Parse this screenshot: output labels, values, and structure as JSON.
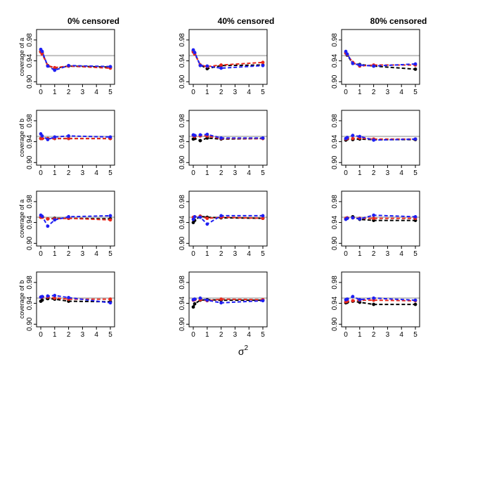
{
  "colors": {
    "reference_line": "#c0c0c0",
    "black": "#000000",
    "red": "#e8291c",
    "blue": "#1f1ff2"
  },
  "chart_data": {
    "type": "line",
    "layout": "4 rows x 3 columns small multiples",
    "x_label": "σ",
    "x_label_superscript": "2",
    "column_titles": [
      "0% censored",
      "40% censored",
      "80% censored"
    ],
    "row_ylabels": [
      "coverage of a",
      "coverage of b",
      "coverage of a",
      "coverage of b"
    ],
    "x_ticks": [
      "0",
      "1",
      "2",
      "3",
      "4",
      "5"
    ],
    "y_ticks": [
      "0.90",
      "0.94",
      "0.98"
    ],
    "xlim": [
      0,
      5
    ],
    "ylim": [
      0.895,
      1.0
    ],
    "reference_value": 0.95,
    "x": [
      0,
      0.1,
      0.5,
      1,
      2,
      5
    ],
    "series_colors": [
      "black",
      "red",
      "blue"
    ],
    "panels": [
      {
        "row": 1,
        "col": 1,
        "series": [
          {
            "color": "black",
            "values": [
              0.958,
              0.955,
              0.931,
              0.926,
              0.93,
              0.928
            ]
          },
          {
            "color": "red",
            "values": [
              0.957,
              0.953,
              0.931,
              0.927,
              0.93,
              0.926
            ]
          },
          {
            "color": "blue",
            "values": [
              0.962,
              0.958,
              0.93,
              0.922,
              0.931,
              0.929
            ]
          }
        ]
      },
      {
        "row": 1,
        "col": 2,
        "series": [
          {
            "color": "black",
            "values": [
              0.959,
              0.955,
              0.932,
              0.925,
              0.931,
              0.932
            ]
          },
          {
            "color": "red",
            "values": [
              0.957,
              0.953,
              0.932,
              0.929,
              0.932,
              0.937
            ]
          },
          {
            "color": "blue",
            "values": [
              0.961,
              0.956,
              0.931,
              0.93,
              0.926,
              0.931
            ]
          }
        ]
      },
      {
        "row": 1,
        "col": 3,
        "series": [
          {
            "color": "black",
            "values": [
              0.955,
              0.951,
              0.935,
              0.933,
              0.93,
              0.924
            ]
          },
          {
            "color": "red",
            "values": [
              0.955,
              0.952,
              0.937,
              0.93,
              0.932,
              0.932
            ]
          },
          {
            "color": "blue",
            "values": [
              0.958,
              0.953,
              0.935,
              0.932,
              0.93,
              0.934
            ]
          }
        ]
      },
      {
        "row": 2,
        "col": 1,
        "series": [
          {
            "color": "black",
            "values": [
              0.946,
              0.946,
              0.946,
              0.946,
              0.946,
              0.946
            ]
          },
          {
            "color": "red",
            "values": [
              0.946,
              0.946,
              0.946,
              0.946,
              0.946,
              0.946
            ]
          },
          {
            "color": "blue",
            "values": [
              0.955,
              0.951,
              0.944,
              0.949,
              0.951,
              0.949
            ]
          }
        ]
      },
      {
        "row": 2,
        "col": 2,
        "series": [
          {
            "color": "black",
            "values": [
              0.945,
              0.946,
              0.942,
              0.947,
              0.945,
              0.946
            ]
          },
          {
            "color": "red",
            "values": [
              0.952,
              0.95,
              0.951,
              0.951,
              0.946,
              0.946
            ]
          },
          {
            "color": "blue",
            "values": [
              0.953,
              0.952,
              0.953,
              0.954,
              0.947,
              0.947
            ]
          }
        ]
      },
      {
        "row": 2,
        "col": 3,
        "series": [
          {
            "color": "black",
            "values": [
              0.943,
              0.945,
              0.944,
              0.945,
              0.944,
              0.944
            ]
          },
          {
            "color": "red",
            "values": [
              0.945,
              0.946,
              0.946,
              0.947,
              0.945,
              0.945
            ]
          },
          {
            "color": "blue",
            "values": [
              0.946,
              0.948,
              0.952,
              0.95,
              0.943,
              0.945
            ]
          }
        ]
      },
      {
        "row": 3,
        "col": 1,
        "series": [
          {
            "color": "black",
            "values": [
              0.95,
              0.951,
              0.947,
              0.948,
              0.948,
              0.947
            ]
          },
          {
            "color": "red",
            "values": [
              0.95,
              0.95,
              0.947,
              0.947,
              0.948,
              0.945
            ]
          },
          {
            "color": "blue",
            "values": [
              0.954,
              0.952,
              0.933,
              0.945,
              0.951,
              0.953
            ]
          }
        ]
      },
      {
        "row": 3,
        "col": 2,
        "series": [
          {
            "color": "black",
            "values": [
              0.94,
              0.944,
              0.952,
              0.95,
              0.949,
              0.948
            ]
          },
          {
            "color": "red",
            "values": [
              0.95,
              0.951,
              0.952,
              0.948,
              0.95,
              0.948
            ]
          },
          {
            "color": "blue",
            "values": [
              0.946,
              0.951,
              0.95,
              0.937,
              0.953,
              0.953
            ]
          }
        ]
      },
      {
        "row": 3,
        "col": 3,
        "series": [
          {
            "color": "black",
            "values": [
              0.947,
              0.948,
              0.951,
              0.946,
              0.944,
              0.944
            ]
          },
          {
            "color": "red",
            "values": [
              0.948,
              0.949,
              0.949,
              0.948,
              0.948,
              0.948
            ]
          },
          {
            "color": "blue",
            "values": [
              0.946,
              0.948,
              0.949,
              0.947,
              0.954,
              0.951
            ]
          }
        ]
      },
      {
        "row": 4,
        "col": 1,
        "series": [
          {
            "color": "black",
            "values": [
              0.944,
              0.946,
              0.949,
              0.948,
              0.944,
              0.943
            ]
          },
          {
            "color": "red",
            "values": [
              0.952,
              0.952,
              0.952,
              0.95,
              0.948,
              0.948
            ]
          },
          {
            "color": "blue",
            "values": [
              0.952,
              0.953,
              0.954,
              0.955,
              0.951,
              0.941
            ]
          }
        ]
      },
      {
        "row": 4,
        "col": 2,
        "series": [
          {
            "color": "black",
            "values": [
              0.933,
              0.939,
              0.946,
              0.947,
              0.946,
              0.946
            ]
          },
          {
            "color": "red",
            "values": [
              0.946,
              0.947,
              0.947,
              0.945,
              0.948,
              0.947
            ]
          },
          {
            "color": "blue",
            "values": [
              0.947,
              0.948,
              0.95,
              0.946,
              0.941,
              0.945
            ]
          }
        ]
      },
      {
        "row": 4,
        "col": 3,
        "series": [
          {
            "color": "black",
            "values": [
              0.941,
              0.942,
              0.944,
              0.942,
              0.938,
              0.938
            ]
          },
          {
            "color": "red",
            "values": [
              0.943,
              0.944,
              0.945,
              0.946,
              0.946,
              0.945
            ]
          },
          {
            "color": "blue",
            "values": [
              0.947,
              0.948,
              0.953,
              0.947,
              0.95,
              0.946
            ]
          }
        ]
      }
    ]
  }
}
